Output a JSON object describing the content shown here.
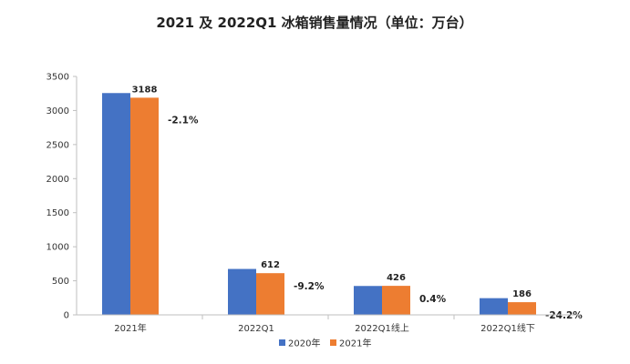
{
  "chart_data": {
    "type": "bar",
    "title": "2021 及 2022Q1 冰箱销售量情况（单位：万台）",
    "categories": [
      "2021年",
      "2022Q1",
      "2022Q1线上",
      "2022Q1线下"
    ],
    "series": [
      {
        "name": "2020年",
        "color": "#4472C4",
        "values": [
          3256,
          674,
          424,
          245
        ]
      },
      {
        "name": "2021年",
        "color": "#ED7D31",
        "values": [
          3188,
          612,
          426,
          186
        ]
      }
    ],
    "data_labels": [
      "3188",
      "612",
      "426",
      "186"
    ],
    "change_labels": [
      "-2.1%",
      "-9.2%",
      "0.4%",
      "-24.2%"
    ],
    "ylim": [
      0,
      3500
    ],
    "yticks": [
      0,
      500,
      1000,
      1500,
      2000,
      2500,
      3000,
      3500
    ],
    "grid": false,
    "legend_position": "bottom"
  }
}
